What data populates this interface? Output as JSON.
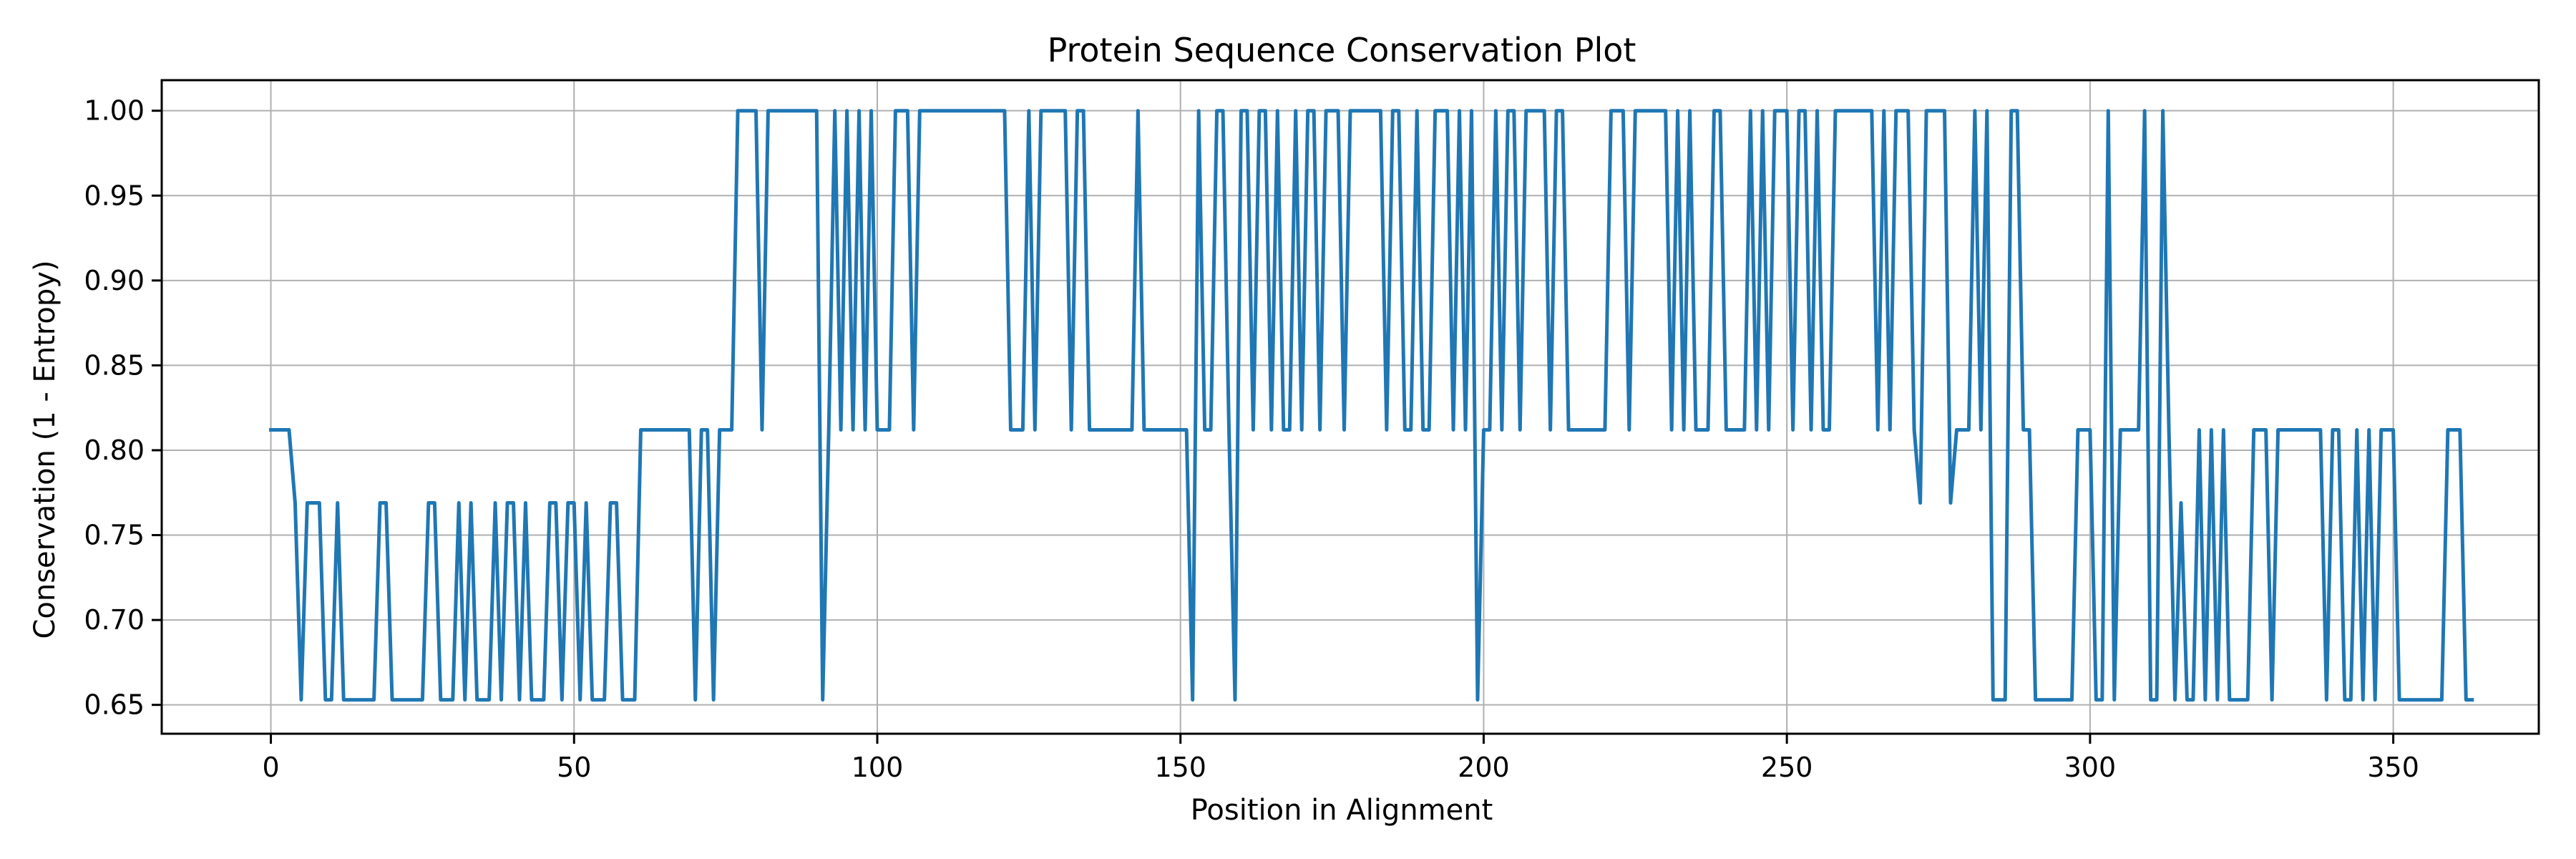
{
  "chart_data": {
    "type": "line",
    "title": "Protein Sequence Conservation Plot",
    "xlabel": "Position in Alignment",
    "ylabel": "Conservation (1 - Entropy)",
    "xlim": [
      -18,
      374
    ],
    "ylim": [
      0.633,
      1.018
    ],
    "xticks": [
      0,
      50,
      100,
      150,
      200,
      250,
      300,
      350
    ],
    "xtick_labels": [
      "0",
      "50",
      "100",
      "150",
      "200",
      "250",
      "300",
      "350"
    ],
    "yticks": [
      0.65,
      0.7,
      0.75,
      0.8,
      0.85,
      0.9,
      0.95,
      1.0
    ],
    "ytick_labels": [
      "0.65",
      "0.70",
      "0.75",
      "0.80",
      "0.85",
      "0.90",
      "0.95",
      "1.00"
    ],
    "grid": true,
    "line_color": "#1f77b4",
    "x_start": 0,
    "values": [
      0.812,
      0.812,
      0.812,
      0.812,
      0.769,
      0.653,
      0.769,
      0.769,
      0.769,
      0.653,
      0.653,
      0.769,
      0.653,
      0.653,
      0.653,
      0.653,
      0.653,
      0.653,
      0.769,
      0.769,
      0.653,
      0.653,
      0.653,
      0.653,
      0.653,
      0.653,
      0.769,
      0.769,
      0.653,
      0.653,
      0.653,
      0.769,
      0.653,
      0.769,
      0.653,
      0.653,
      0.653,
      0.769,
      0.653,
      0.769,
      0.769,
      0.653,
      0.769,
      0.653,
      0.653,
      0.653,
      0.769,
      0.769,
      0.653,
      0.769,
      0.769,
      0.653,
      0.769,
      0.653,
      0.653,
      0.653,
      0.769,
      0.769,
      0.653,
      0.653,
      0.653,
      0.812,
      0.812,
      0.812,
      0.812,
      0.812,
      0.812,
      0.812,
      0.812,
      0.812,
      0.653,
      0.812,
      0.812,
      0.653,
      0.812,
      0.812,
      0.812,
      1.0,
      1.0,
      1.0,
      1.0,
      0.812,
      1.0,
      1.0,
      1.0,
      1.0,
      1.0,
      1.0,
      1.0,
      1.0,
      1.0,
      0.653,
      0.812,
      1.0,
      0.812,
      1.0,
      0.812,
      1.0,
      0.812,
      1.0,
      0.812,
      0.812,
      0.812,
      1.0,
      1.0,
      1.0,
      0.812,
      1.0,
      1.0,
      1.0,
      1.0,
      1.0,
      1.0,
      1.0,
      1.0,
      1.0,
      1.0,
      1.0,
      1.0,
      1.0,
      1.0,
      1.0,
      0.812,
      0.812,
      0.812,
      1.0,
      0.812,
      1.0,
      1.0,
      1.0,
      1.0,
      1.0,
      0.812,
      1.0,
      1.0,
      0.812,
      0.812,
      0.812,
      0.812,
      0.812,
      0.812,
      0.812,
      0.812,
      1.0,
      0.812,
      0.812,
      0.812,
      0.812,
      0.812,
      0.812,
      0.812,
      0.812,
      0.653,
      1.0,
      0.812,
      0.812,
      1.0,
      1.0,
      0.812,
      0.653,
      1.0,
      1.0,
      0.812,
      1.0,
      1.0,
      0.812,
      1.0,
      0.812,
      0.812,
      1.0,
      0.812,
      1.0,
      1.0,
      0.812,
      1.0,
      1.0,
      1.0,
      0.812,
      1.0,
      1.0,
      1.0,
      1.0,
      1.0,
      1.0,
      0.812,
      1.0,
      1.0,
      0.812,
      0.812,
      1.0,
      0.812,
      0.812,
      1.0,
      1.0,
      1.0,
      0.812,
      1.0,
      0.812,
      1.0,
      0.653,
      0.812,
      0.812,
      1.0,
      0.812,
      1.0,
      1.0,
      0.812,
      1.0,
      1.0,
      1.0,
      1.0,
      0.812,
      1.0,
      1.0,
      0.812,
      0.812,
      0.812,
      0.812,
      0.812,
      0.812,
      0.812,
      1.0,
      1.0,
      1.0,
      0.812,
      1.0,
      1.0,
      1.0,
      1.0,
      1.0,
      1.0,
      0.812,
      1.0,
      0.812,
      1.0,
      0.812,
      0.812,
      0.812,
      1.0,
      1.0,
      0.812,
      0.812,
      0.812,
      0.812,
      1.0,
      0.812,
      1.0,
      0.812,
      1.0,
      1.0,
      1.0,
      0.812,
      1.0,
      1.0,
      0.812,
      1.0,
      0.812,
      0.812,
      1.0,
      1.0,
      1.0,
      1.0,
      1.0,
      1.0,
      1.0,
      0.812,
      1.0,
      0.812,
      1.0,
      1.0,
      1.0,
      0.812,
      0.769,
      1.0,
      1.0,
      1.0,
      1.0,
      0.769,
      0.812,
      0.812,
      0.812,
      1.0,
      0.812,
      1.0,
      0.653,
      0.653,
      0.653,
      1.0,
      1.0,
      0.812,
      0.812,
      0.653,
      0.653,
      0.653,
      0.653,
      0.653,
      0.653,
      0.653,
      0.812,
      0.812,
      0.812,
      0.653,
      0.653,
      1.0,
      0.653,
      0.812,
      0.812,
      0.812,
      0.812,
      1.0,
      0.653,
      0.653,
      1.0,
      0.812,
      0.653,
      0.769,
      0.653,
      0.653,
      0.812,
      0.653,
      0.812,
      0.653,
      0.812,
      0.653,
      0.653,
      0.653,
      0.653,
      0.812,
      0.812,
      0.812,
      0.653,
      0.812,
      0.812,
      0.812,
      0.812,
      0.812,
      0.812,
      0.812,
      0.812,
      0.653,
      0.812,
      0.812,
      0.653,
      0.653,
      0.812,
      0.653,
      0.812,
      0.653,
      0.812,
      0.812,
      0.812,
      0.653,
      0.653,
      0.653,
      0.653,
      0.653,
      0.653,
      0.653,
      0.653,
      0.812,
      0.812,
      0.812,
      0.653,
      0.653
    ]
  }
}
